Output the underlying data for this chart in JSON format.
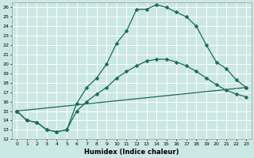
{
  "background_color": "#cce8e4",
  "grid_color": "#ffffff",
  "line_color": "#1a6b5a",
  "xlabel": "Humidex (Indice chaleur)",
  "xlim": [
    -0.5,
    23.5
  ],
  "ylim": [
    12,
    26.5
  ],
  "xticks": [
    0,
    1,
    2,
    3,
    4,
    5,
    6,
    7,
    8,
    9,
    10,
    11,
    12,
    13,
    14,
    15,
    16,
    17,
    18,
    19,
    20,
    21,
    22,
    23
  ],
  "yticks": [
    12,
    13,
    14,
    15,
    16,
    17,
    18,
    19,
    20,
    21,
    22,
    23,
    24,
    25,
    26
  ],
  "line1_x": [
    0,
    1,
    2,
    3,
    4,
    5,
    6,
    7,
    8,
    9,
    10,
    11,
    12,
    13,
    14,
    15,
    16,
    17,
    18,
    19,
    20,
    21,
    22,
    23
  ],
  "line1_y": [
    15.0,
    14.0,
    13.8,
    13.0,
    12.8,
    13.0,
    15.8,
    17.5,
    18.5,
    20.0,
    22.2,
    23.5,
    25.8,
    25.8,
    26.3,
    26.0,
    25.5,
    25.0,
    24.0,
    22.0,
    20.2,
    19.5,
    18.3,
    17.5
  ],
  "line2_x": [
    0,
    1,
    2,
    3,
    4,
    5,
    6,
    7,
    8,
    9,
    10,
    11,
    12,
    13,
    14,
    15,
    16,
    17,
    18,
    19,
    20,
    21,
    22,
    23
  ],
  "line2_y": [
    15.0,
    14.0,
    13.8,
    13.0,
    12.8,
    13.0,
    15.0,
    16.0,
    16.8,
    17.5,
    18.5,
    19.2,
    19.8,
    20.3,
    20.5,
    20.5,
    20.2,
    19.8,
    19.2,
    18.5,
    17.8,
    17.2,
    16.8,
    16.5
  ],
  "line3_x": [
    0,
    23
  ],
  "line3_y": [
    15.0,
    17.5
  ],
  "marker": "D",
  "markersize": 2.5
}
